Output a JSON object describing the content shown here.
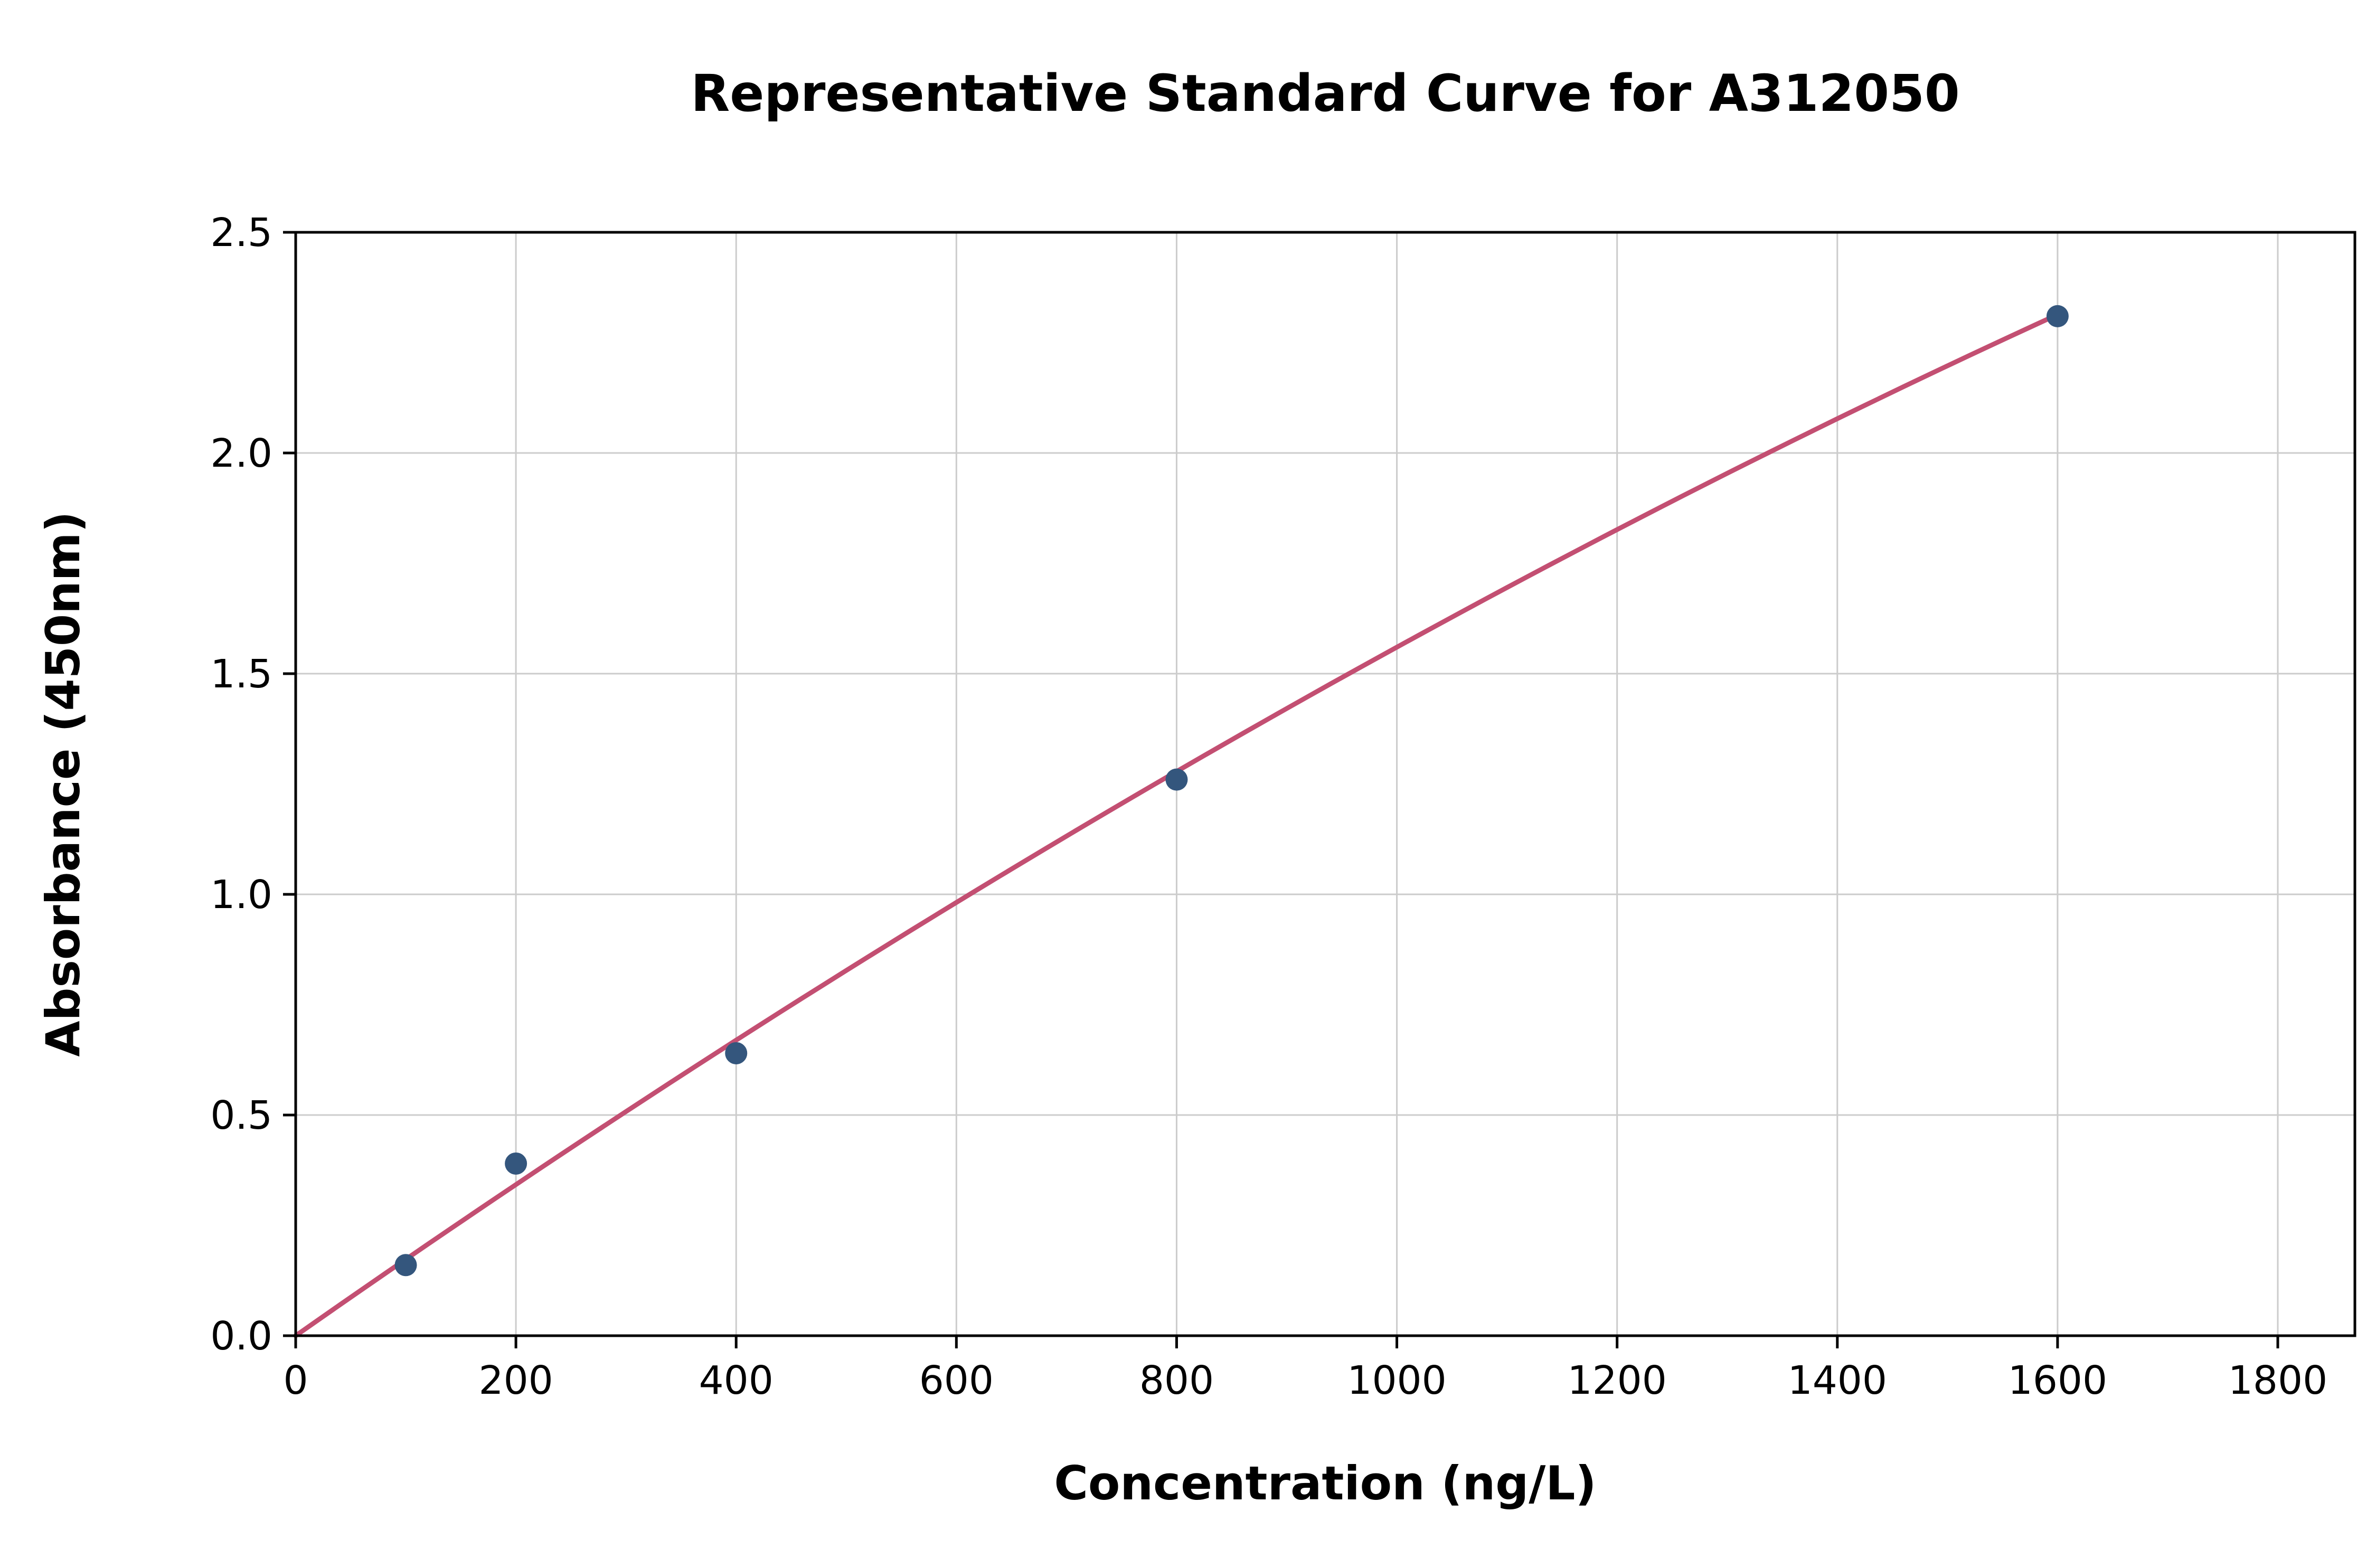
{
  "chart_data": {
    "type": "scatter",
    "title": "Representative Standard Curve for A312050",
    "xlabel": "Concentration (ng/L)",
    "ylabel": "Absorbance (450nm)",
    "xlim": [
      0,
      1870
    ],
    "ylim": [
      0,
      2.5
    ],
    "x_ticks": [
      0,
      200,
      400,
      600,
      800,
      1000,
      1200,
      1400,
      1600,
      1800
    ],
    "x_tick_labels": [
      "0",
      "200",
      "400",
      "600",
      "800",
      "1000",
      "1200",
      "1400",
      "1600",
      "1800"
    ],
    "y_ticks": [
      0,
      0.5,
      1.0,
      1.5,
      2.0,
      2.5
    ],
    "y_tick_labels": [
      "0.0",
      "0.5",
      "1.0",
      "1.5",
      "2.0",
      "2.5"
    ],
    "grid": true,
    "legend": "none",
    "points": {
      "x": [
        100,
        200,
        400,
        800,
        1600
      ],
      "y": [
        0.16,
        0.39,
        0.64,
        1.26,
        2.31
      ]
    },
    "fit_curve": {
      "type": "quadratic",
      "c1": 0.00175,
      "c2": -1.9e-07,
      "x_start": 0,
      "x_end": 1600
    },
    "colors": {
      "point": "#34567d",
      "curve": "#c34f72",
      "grid": "#cccccc",
      "frame": "#000000"
    }
  }
}
